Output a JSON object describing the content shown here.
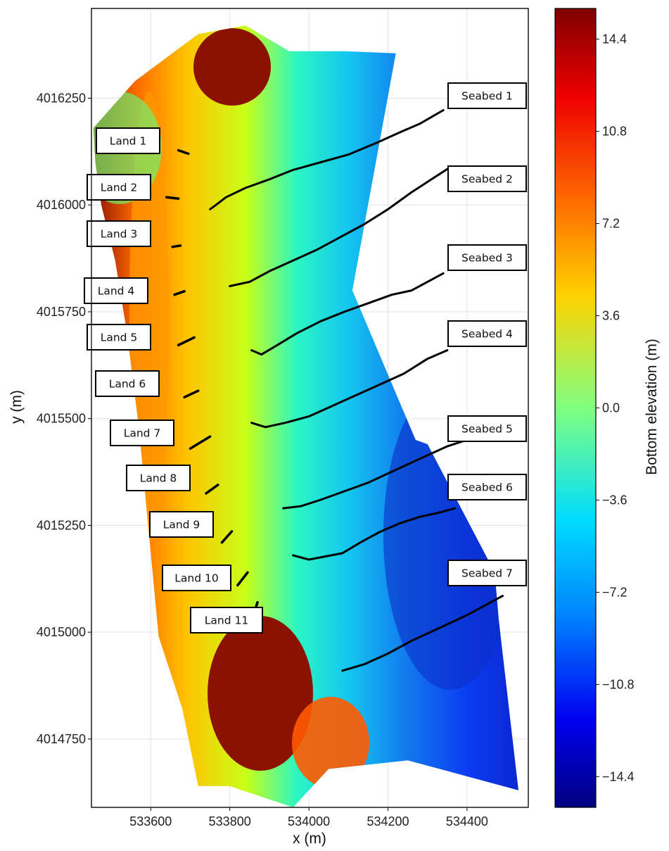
{
  "chart_data": {
    "type": "heatmap",
    "title": "",
    "xlabel": "x (m)",
    "ylabel": "y (m)",
    "xlim": [
      533450,
      534555
    ],
    "ylim": [
      4014590,
      4016460
    ],
    "x_ticks": [
      "533600",
      "533800",
      "534000",
      "534200",
      "534400"
    ],
    "x_tick_values": [
      533600,
      533800,
      534000,
      534200,
      534400
    ],
    "y_ticks": [
      "4014750",
      "4015000",
      "4015250",
      "4015500",
      "4015750",
      "4016000",
      "4016250"
    ],
    "y_tick_values": [
      4014750,
      4015000,
      4015250,
      4015500,
      4015750,
      4016000,
      4016250
    ],
    "grid": true,
    "colorbar": {
      "label": "Bottom elevation (m)",
      "range": [
        -15.6,
        15.6
      ],
      "ticks": [
        "14.4",
        "10.8",
        "7.2",
        "3.6",
        "0.0",
        "−3.6",
        "−7.2",
        "−10.8",
        "−14.4"
      ],
      "tick_values": [
        14.4,
        10.8,
        7.2,
        3.6,
        0.0,
        -3.6,
        -7.2,
        -10.8,
        -14.4
      ],
      "colormap": "jet"
    },
    "survey_extent": [
      [
        533455,
        4016180
      ],
      [
        533560,
        4016290
      ],
      [
        533720,
        4016400
      ],
      [
        533840,
        4016420
      ],
      [
        533950,
        4016360
      ],
      [
        534090,
        4016360
      ],
      [
        534220,
        4016355
      ],
      [
        534110,
        4015800
      ],
      [
        534270,
        4015450
      ],
      [
        534300,
        4015440
      ],
      [
        534470,
        4015140
      ],
      [
        534480,
        4015030
      ],
      [
        534530,
        4014630
      ],
      [
        534250,
        4014700
      ],
      [
        534050,
        4014680
      ],
      [
        533960,
        4014590
      ],
      [
        533800,
        4014640
      ],
      [
        533720,
        4014640
      ],
      [
        533680,
        4014820
      ],
      [
        533620,
        4014990
      ],
      [
        533570,
        4015480
      ],
      [
        533540,
        4015700
      ],
      [
        533510,
        4015870
      ],
      [
        533475,
        4016000
      ],
      [
        533460,
        4016100
      ]
    ],
    "series": [
      {
        "name": "Land 1",
        "type": "land",
        "x": [
          533670,
          533695
        ],
        "y": [
          4016128,
          4016120
        ]
      },
      {
        "name": "Land 2",
        "type": "land",
        "x": [
          533640,
          533670
        ],
        "y": [
          4016018,
          4016015
        ]
      },
      {
        "name": "Land 3",
        "type": "land",
        "x": [
          533655,
          533675
        ],
        "y": [
          4015902,
          4015905
        ]
      },
      {
        "name": "Land 4",
        "type": "land",
        "x": [
          533660,
          533685
        ],
        "y": [
          4015790,
          4015798
        ]
      },
      {
        "name": "Land 5",
        "type": "land",
        "x": [
          533670,
          533710
        ],
        "y": [
          4015672,
          4015690
        ]
      },
      {
        "name": "Land 6",
        "type": "land",
        "x": [
          533685,
          533720
        ],
        "y": [
          4015550,
          4015565
        ]
      },
      {
        "name": "Land 7",
        "type": "land",
        "x": [
          533700,
          533750
        ],
        "y": [
          4015430,
          4015458
        ]
      },
      {
        "name": "Land 8",
        "type": "land",
        "x": [
          533740,
          533770
        ],
        "y": [
          4015325,
          4015345
        ]
      },
      {
        "name": "Land 9",
        "type": "land",
        "x": [
          533780,
          533805
        ],
        "y": [
          4015210,
          4015236
        ]
      },
      {
        "name": "Land 10",
        "type": "land",
        "x": [
          533820,
          533845
        ],
        "y": [
          4015110,
          4015140
        ]
      },
      {
        "name": "Land 11",
        "type": "land",
        "x": [
          533860,
          533870
        ],
        "y": [
          4015040,
          4015070
        ]
      },
      {
        "name": "Seabed 1",
        "type": "seabed",
        "x": [
          533750,
          533765,
          533790,
          533840,
          533900,
          533960,
          534030,
          534100,
          534170,
          534230,
          534280,
          534340
        ],
        "y": [
          4015990,
          4016000,
          4016018,
          4016040,
          4016060,
          4016082,
          4016100,
          4016118,
          4016145,
          4016170,
          4016190,
          4016222
        ]
      },
      {
        "name": "Seabed 2",
        "type": "seabed",
        "x": [
          533800,
          533850,
          533900,
          533960,
          534020,
          534080,
          534140,
          534200,
          534260,
          534310,
          534360
        ],
        "y": [
          4015810,
          4015820,
          4015845,
          4015870,
          4015895,
          4015925,
          4015955,
          4015990,
          4016030,
          4016060,
          4016090
        ]
      },
      {
        "name": "Seabed 3",
        "type": "seabed",
        "x": [
          533855,
          533880,
          533920,
          533970,
          534030,
          534090,
          534150,
          534210,
          534260,
          534300,
          534340
        ],
        "y": [
          4015660,
          4015650,
          4015672,
          4015700,
          4015728,
          4015750,
          4015770,
          4015790,
          4015800,
          4015820,
          4015840
        ]
      },
      {
        "name": "Seabed 4",
        "type": "seabed",
        "x": [
          533855,
          533890,
          533940,
          534000,
          534060,
          534120,
          534180,
          534240,
          534300,
          534350
        ],
        "y": [
          4015490,
          4015480,
          4015490,
          4015505,
          4015530,
          4015555,
          4015580,
          4015605,
          4015640,
          4015660
        ]
      },
      {
        "name": "Seabed 5",
        "type": "seabed",
        "x": [
          533935,
          533980,
          534030,
          534090,
          534150,
          534220,
          534290,
          534350,
          534400
        ],
        "y": [
          4015290,
          4015295,
          4015310,
          4015330,
          4015350,
          4015380,
          4015410,
          4015435,
          4015450
        ]
      },
      {
        "name": "Seabed 6",
        "type": "seabed",
        "x": [
          533960,
          534000,
          534085,
          534130,
          534180,
          534230,
          534280,
          534330,
          534370
        ],
        "y": [
          4015180,
          4015170,
          4015185,
          4015210,
          4015235,
          4015255,
          4015270,
          4015280,
          4015290
        ]
      },
      {
        "name": "Seabed 7",
        "type": "seabed",
        "x": [
          534085,
          534140,
          534200,
          534260,
          534330,
          534400,
          534460,
          534490
        ],
        "y": [
          4014910,
          4014925,
          4014950,
          4014980,
          4015010,
          4015040,
          4015070,
          4015085
        ]
      }
    ],
    "annotations": [
      "Land 1",
      "Land 2",
      "Land 3",
      "Land 4",
      "Land 5",
      "Land 6",
      "Land 7",
      "Land 8",
      "Land 9",
      "Land 10",
      "Land 11",
      "Seabed 1",
      "Seabed 2",
      "Seabed 3",
      "Seabed 4",
      "Seabed 5",
      "Seabed 6",
      "Seabed 7"
    ]
  }
}
